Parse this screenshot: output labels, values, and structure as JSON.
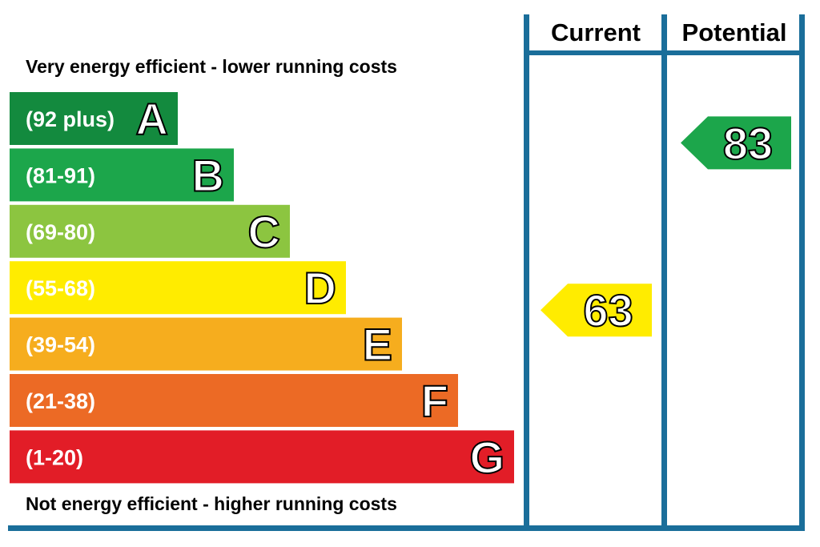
{
  "chart_data": {
    "type": "bar",
    "top_caption": "Very energy efficient - lower running costs",
    "bottom_caption": "Not energy efficient - higher running costs",
    "columns": [
      "Current",
      "Potential"
    ],
    "bands": [
      {
        "range": "(92 plus)",
        "letter": "A",
        "color": "#138a3e"
      },
      {
        "range": "(81-91)",
        "letter": "B",
        "color": "#1ca64b"
      },
      {
        "range": "(69-80)",
        "letter": "C",
        "color": "#8cc540"
      },
      {
        "range": "(55-68)",
        "letter": "D",
        "color": "#ffec00"
      },
      {
        "range": "(39-54)",
        "letter": "E",
        "color": "#f6ad1e"
      },
      {
        "range": "(21-38)",
        "letter": "F",
        "color": "#ec6a25"
      },
      {
        "range": "(1-20)",
        "letter": "G",
        "color": "#e21d27"
      }
    ],
    "ratings": [
      {
        "column": "Current",
        "value": 63,
        "band": "D",
        "color": "#ffec00"
      },
      {
        "column": "Potential",
        "value": 83,
        "band": "B",
        "color": "#1ca64b"
      }
    ],
    "frame_color": "#1a6e9a"
  }
}
